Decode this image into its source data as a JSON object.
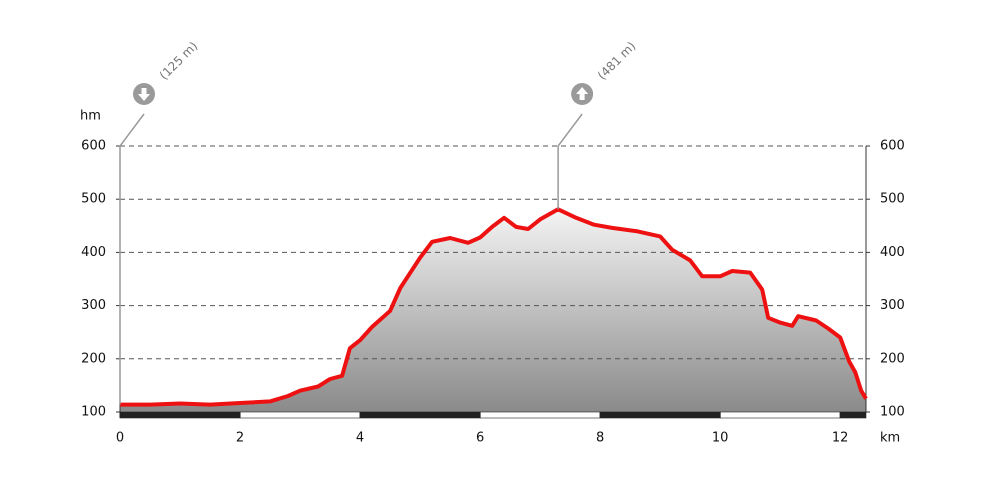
{
  "chart_data": {
    "type": "area",
    "y_label": "hm",
    "x_label": "km",
    "x": [
      0,
      0.5,
      1,
      1.5,
      2,
      2.5,
      2.8,
      3,
      3.3,
      3.5,
      3.7,
      3.83,
      4,
      4.2,
      4.5,
      4.67,
      5,
      5.2,
      5.5,
      5.8,
      6,
      6.2,
      6.4,
      6.6,
      6.8,
      7,
      7.3,
      7.6,
      7.9,
      8.2,
      8.6,
      9,
      9.2,
      9.5,
      9.7,
      10,
      10.2,
      10.5,
      10.7,
      10.8,
      11,
      11.2,
      11.3,
      11.6,
      11.8,
      12,
      12.15,
      12.25,
      12.35,
      12.43
    ],
    "values": [
      114,
      114,
      116,
      114,
      117,
      120,
      130,
      140,
      148,
      162,
      168,
      220,
      235,
      260,
      290,
      333,
      390,
      420,
      427,
      418,
      428,
      448,
      465,
      448,
      444,
      462,
      481,
      465,
      452,
      446,
      440,
      430,
      405,
      385,
      355,
      355,
      365,
      362,
      330,
      277,
      268,
      262,
      280,
      272,
      257,
      240,
      195,
      175,
      140,
      125
    ],
    "color": "#ee1111",
    "xlim": [
      0,
      12.43
    ],
    "xticks": [
      0,
      2,
      4,
      6,
      8,
      10,
      12
    ],
    "ylim": [
      100,
      600
    ],
    "yticks": [
      100,
      200,
      300,
      400,
      500,
      600
    ],
    "y2lim": [
      100,
      600
    ],
    "y2ticks": [
      100,
      200,
      300,
      400,
      500,
      600
    ],
    "grid": true,
    "annotations": [
      {
        "label": "(125 m)",
        "x": 0
      },
      {
        "label": "(481 m)",
        "x": 7.3
      }
    ]
  }
}
